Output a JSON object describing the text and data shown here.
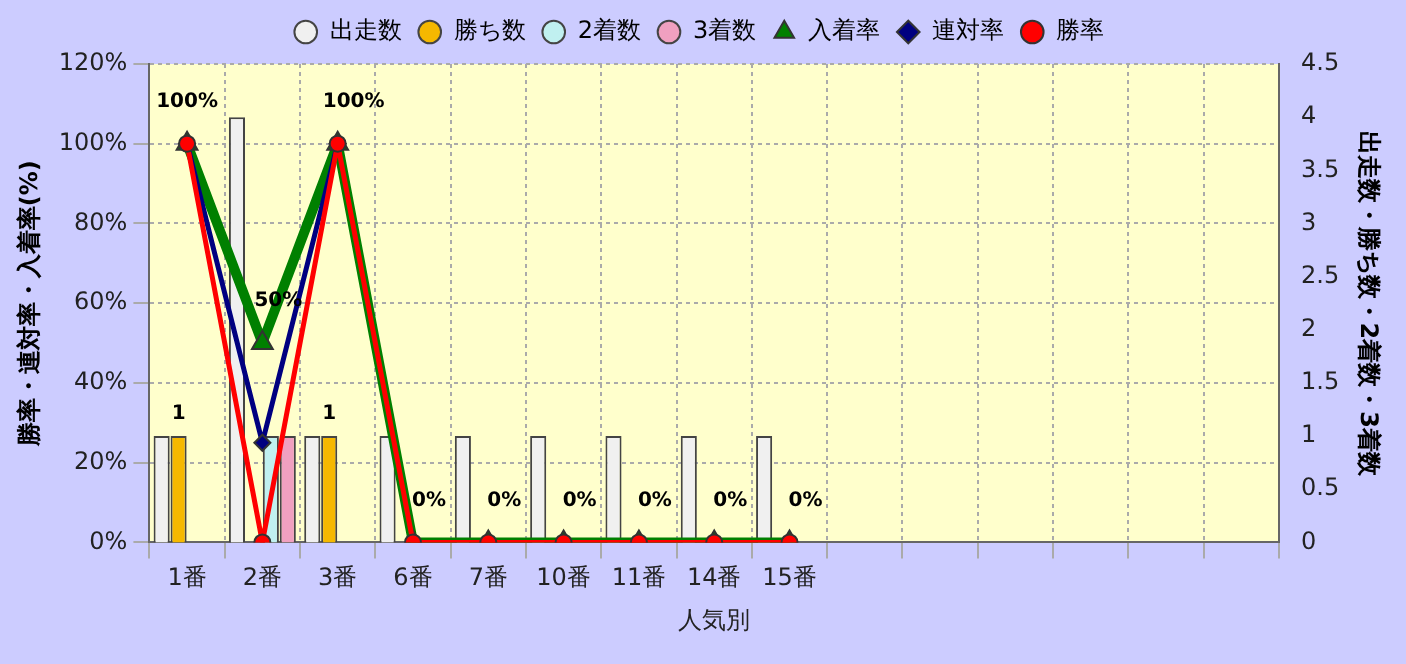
{
  "chart_data": {
    "type": "bar",
    "xlabel": "人気別",
    "ylabel": "勝率・連対率・入着率(%)",
    "y2label": "出走数・勝ち数・2着数・3着数",
    "categories": [
      "1番",
      "2番",
      "3番",
      "6番",
      "7番",
      "10番",
      "11番",
      "14番",
      "15番",
      null,
      null,
      null,
      null,
      null,
      null
    ],
    "series": [
      {
        "name": "出走数",
        "axis": "y2",
        "color": "#f0f0f0",
        "values": [
          1,
          4,
          1,
          1,
          1,
          1,
          1,
          1,
          1,
          null,
          null,
          null,
          null,
          null,
          null
        ]
      },
      {
        "name": "勝ち数",
        "axis": "y2",
        "color": "#f5b800",
        "values": [
          1,
          0,
          1,
          0,
          0,
          0,
          0,
          0,
          0,
          null,
          null,
          null,
          null,
          null,
          null
        ],
        "value_labels": [
          "1",
          null,
          "1",
          null,
          null,
          null,
          null,
          null,
          null,
          null,
          null,
          null,
          null,
          null,
          null
        ]
      },
      {
        "name": "2着数",
        "axis": "y2",
        "color": "#c0f0f0",
        "values": [
          0,
          1,
          0,
          0,
          0,
          0,
          0,
          0,
          0,
          null,
          null,
          null,
          null,
          null,
          null
        ]
      },
      {
        "name": "3着数",
        "axis": "y2",
        "color": "#f0a0c0",
        "values": [
          0,
          1,
          0,
          0,
          0,
          0,
          0,
          0,
          0,
          null,
          null,
          null,
          null,
          null,
          null
        ]
      },
      {
        "name": "入着率",
        "type": "line",
        "color": "#008000",
        "marker": "triangle",
        "values": [
          100,
          50,
          100,
          0,
          0,
          0,
          0,
          0,
          0,
          null,
          null,
          null,
          null,
          null,
          null
        ],
        "value_labels": [
          "100%",
          "50%",
          "100%",
          "0%",
          "0%",
          "0%",
          "0%",
          "0%",
          "0%",
          null,
          null,
          null,
          null,
          null,
          null
        ]
      },
      {
        "name": "連対率",
        "type": "line",
        "color": "#000080",
        "marker": "diamond",
        "values": [
          100,
          25,
          100,
          null,
          null,
          null,
          null,
          null,
          null,
          null,
          null,
          null,
          null,
          null,
          null
        ]
      },
      {
        "name": "勝率",
        "type": "line",
        "color": "#ff0000",
        "marker": "circle",
        "values": [
          100,
          0,
          100,
          0,
          0,
          0,
          0,
          0,
          0,
          null,
          null,
          null,
          null,
          null,
          null
        ]
      }
    ],
    "ylim": [
      0,
      120
    ],
    "yticks": [
      {
        "value": 0,
        "label": "0%"
      },
      {
        "value": 20,
        "label": "20%"
      },
      {
        "value": 40,
        "label": "40%"
      },
      {
        "value": 60,
        "label": "60%"
      },
      {
        "value": 80,
        "label": "80%"
      },
      {
        "value": 100,
        "label": "100%"
      },
      {
        "value": 120,
        "label": "120%"
      }
    ],
    "y2lim": [
      0,
      4.5
    ],
    "y2ticks": [
      0,
      0.5,
      1,
      1.5,
      2,
      2.5,
      3,
      3.5,
      4,
      4.5
    ],
    "grid": true,
    "legend": "top"
  }
}
